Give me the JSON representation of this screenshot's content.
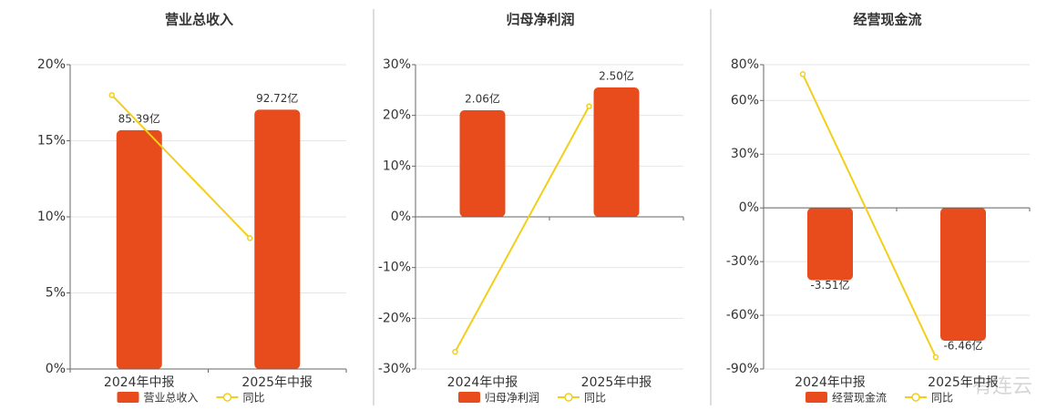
{
  "chart_data": [
    {
      "type": "combo",
      "title": "营业总收入",
      "categories": [
        "2024年中报",
        "2025年中报"
      ],
      "series": [
        {
          "name": "营业总收入",
          "type": "bar",
          "axis": "y2",
          "color": "#e84c1c",
          "values": [
            85.39,
            92.72
          ],
          "value_labels": [
            "85.39亿",
            "92.72亿"
          ]
        },
        {
          "name": "同比",
          "type": "line",
          "color": "#f2cf1a",
          "values": [
            18.0,
            8.6
          ]
        }
      ],
      "ylim": [
        0,
        20
      ],
      "yticks": [
        {
          "value": 0,
          "label": "0%"
        },
        {
          "value": 5,
          "label": "5%"
        },
        {
          "value": 10,
          "label": "10%"
        },
        {
          "value": 15,
          "label": "15%"
        },
        {
          "value": 20,
          "label": "20%"
        }
      ],
      "y2lim": [
        0,
        108.8
      ],
      "grid": true
    },
    {
      "type": "combo",
      "title": "归母净利润",
      "categories": [
        "2024年中报",
        "2025年中报"
      ],
      "series": [
        {
          "name": "归母净利润",
          "type": "bar",
          "axis": "y2",
          "color": "#e84c1c",
          "values": [
            2.06,
            2.5
          ],
          "value_labels": [
            "2.06亿",
            "2.50亿"
          ]
        },
        {
          "name": "同比",
          "type": "line",
          "color": "#f2cf1a",
          "values": [
            -26.6,
            21.8
          ]
        }
      ],
      "ylim": [
        -30,
        30
      ],
      "yticks": [
        {
          "value": -30,
          "label": "-30%"
        },
        {
          "value": -20,
          "label": "-20%"
        },
        {
          "value": -10,
          "label": "-10%"
        },
        {
          "value": 0,
          "label": "0%"
        },
        {
          "value": 10,
          "label": "10%"
        },
        {
          "value": 20,
          "label": "20%"
        },
        {
          "value": 30,
          "label": "30%"
        }
      ],
      "y2lim": [
        -2.94,
        2.94
      ],
      "grid": true
    },
    {
      "type": "combo",
      "title": "经营现金流",
      "categories": [
        "2024年中报",
        "2025年中报"
      ],
      "series": [
        {
          "name": "经营现金流",
          "type": "bar",
          "axis": "y2",
          "color": "#e84c1c",
          "values": [
            -3.51,
            -6.46
          ],
          "value_labels": [
            "-3.51亿",
            "-6.46亿"
          ]
        },
        {
          "name": "同比",
          "type": "line",
          "color": "#f2cf1a",
          "values": [
            74.7,
            -83.4
          ]
        }
      ],
      "ylim": [
        -90,
        80
      ],
      "yticks": [
        {
          "value": -90,
          "label": "-90%"
        },
        {
          "value": -60,
          "label": "-60%"
        },
        {
          "value": -30,
          "label": "-30%"
        },
        {
          "value": 0,
          "label": "0%"
        },
        {
          "value": 30,
          "label": "30%"
        },
        {
          "value": 60,
          "label": "60%"
        },
        {
          "value": 80,
          "label": "80%"
        }
      ],
      "y2lim": [
        -7.83,
        6.96
      ],
      "grid": true
    }
  ],
  "watermark": "有连云"
}
